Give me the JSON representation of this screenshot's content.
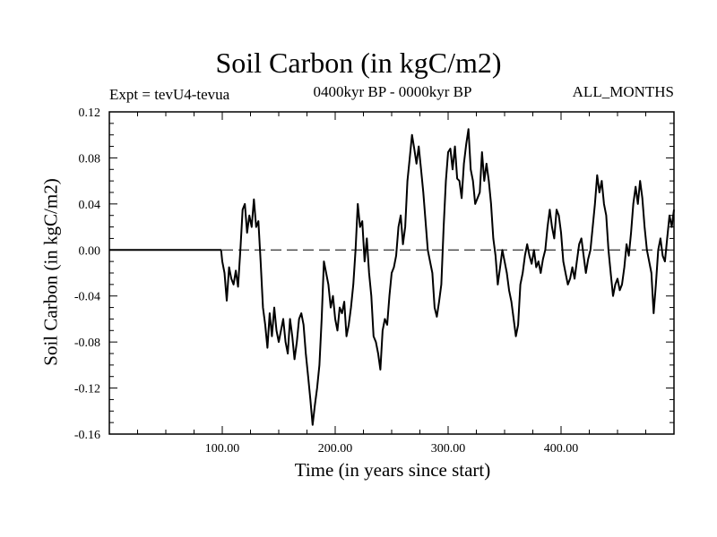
{
  "header": {
    "title": "Soil Carbon (in kgC/m2)",
    "experiment": "Expt = tevU4-tevua",
    "period": "0400kyr BP - 0000kyr BP",
    "months": "ALL_MONTHS"
  },
  "chart_data": {
    "type": "line",
    "title": "Soil Carbon (in kgC/m2)",
    "xlabel": "Time (in years since start)",
    "ylabel": "Soil Carbon (in kgC/m2)",
    "xlim": [
      0,
      500
    ],
    "ylim": [
      -0.16,
      0.12
    ],
    "x_ticks": [
      100,
      200,
      300,
      400
    ],
    "x_tick_labels": [
      "100.00",
      "200.00",
      "300.00",
      "400.00"
    ],
    "y_ticks": [
      0.12,
      0.08,
      0.04,
      0.0,
      -0.04,
      -0.08,
      -0.12,
      -0.16
    ],
    "y_tick_labels": [
      "0.12",
      "0.08",
      "0.04",
      "0.00",
      "-0.04",
      "-0.08",
      "-0.12",
      "-0.16"
    ],
    "reference_line": {
      "y": 0.0,
      "style": "dashed"
    },
    "grid": false,
    "series": [
      {
        "x": [
          0,
          99,
          100,
          102,
          104,
          106,
          108,
          110,
          112,
          114,
          116,
          118,
          120,
          122,
          124,
          126,
          128,
          130,
          132,
          134,
          136,
          138,
          140,
          142,
          144,
          146,
          148,
          150,
          152,
          154,
          156,
          158,
          160,
          162,
          164,
          166,
          168,
          170,
          172,
          174,
          176,
          178,
          180,
          182,
          184,
          186,
          188,
          190,
          192,
          194,
          196,
          198,
          200,
          202,
          204,
          206,
          208,
          210,
          212,
          214,
          216,
          218,
          220,
          222,
          224,
          226,
          228,
          230,
          232,
          234,
          236,
          238,
          240,
          242,
          244,
          246,
          248,
          250,
          252,
          254,
          256,
          258,
          260,
          262,
          264,
          266,
          268,
          270,
          272,
          274,
          276,
          278,
          280,
          282,
          284,
          286,
          288,
          290,
          292,
          294,
          296,
          298,
          300,
          302,
          304,
          306,
          308,
          310,
          312,
          314,
          316,
          318,
          320,
          322,
          324,
          326,
          328,
          330,
          332,
          334,
          336,
          338,
          340,
          342,
          344,
          346,
          348,
          350,
          352,
          354,
          356,
          358,
          360,
          362,
          364,
          366,
          368,
          370,
          372,
          374,
          376,
          378,
          380,
          382,
          384,
          386,
          388,
          390,
          392,
          394,
          396,
          398,
          400,
          402,
          404,
          406,
          408,
          410,
          412,
          414,
          416,
          418,
          420,
          422,
          424,
          426,
          428,
          430,
          432,
          434,
          436,
          438,
          440,
          442,
          444,
          446,
          448,
          450,
          452,
          454,
          456,
          458,
          460,
          462,
          464,
          466,
          468,
          470,
          472,
          474,
          476,
          478,
          480,
          482,
          484,
          486,
          488,
          490,
          492,
          494,
          496,
          498,
          500
        ],
        "y": [
          0.0,
          0.0,
          -0.01,
          -0.02,
          -0.044,
          -0.015,
          -0.025,
          -0.03,
          -0.018,
          -0.032,
          0.0,
          0.035,
          0.04,
          0.015,
          0.03,
          0.02,
          0.044,
          0.02,
          0.025,
          -0.01,
          -0.05,
          -0.065,
          -0.085,
          -0.055,
          -0.075,
          -0.05,
          -0.07,
          -0.08,
          -0.07,
          -0.06,
          -0.08,
          -0.09,
          -0.06,
          -0.075,
          -0.095,
          -0.08,
          -0.06,
          -0.055,
          -0.065,
          -0.09,
          -0.11,
          -0.13,
          -0.152,
          -0.135,
          -0.12,
          -0.1,
          -0.06,
          -0.01,
          -0.02,
          -0.03,
          -0.05,
          -0.04,
          -0.06,
          -0.07,
          -0.05,
          -0.055,
          -0.045,
          -0.075,
          -0.065,
          -0.05,
          -0.03,
          0.0,
          0.04,
          0.02,
          0.025,
          -0.01,
          0.01,
          -0.02,
          -0.04,
          -0.075,
          -0.08,
          -0.09,
          -0.104,
          -0.07,
          -0.06,
          -0.065,
          -0.04,
          -0.02,
          -0.015,
          -0.005,
          0.02,
          0.03,
          0.005,
          0.02,
          0.06,
          0.08,
          0.1,
          0.088,
          0.075,
          0.09,
          0.07,
          0.05,
          0.025,
          0.0,
          -0.01,
          -0.02,
          -0.05,
          -0.058,
          -0.045,
          -0.03,
          0.02,
          0.06,
          0.085,
          0.088,
          0.07,
          0.09,
          0.062,
          0.06,
          0.045,
          0.075,
          0.092,
          0.105,
          0.07,
          0.06,
          0.04,
          0.045,
          0.05,
          0.085,
          0.06,
          0.075,
          0.06,
          0.04,
          0.01,
          -0.005,
          -0.03,
          -0.015,
          0.0,
          -0.01,
          -0.02,
          -0.035,
          -0.045,
          -0.06,
          -0.075,
          -0.065,
          -0.03,
          -0.02,
          -0.005,
          0.005,
          -0.005,
          -0.012,
          0.0,
          -0.015,
          -0.01,
          -0.02,
          -0.008,
          0.0,
          0.02,
          0.035,
          0.02,
          0.01,
          0.035,
          0.03,
          0.015,
          -0.01,
          -0.02,
          -0.03,
          -0.025,
          -0.015,
          -0.025,
          -0.01,
          0.005,
          0.01,
          -0.005,
          -0.02,
          -0.008,
          0.0,
          0.02,
          0.04,
          0.065,
          0.05,
          0.06,
          0.04,
          0.03,
          0.0,
          -0.02,
          -0.04,
          -0.03,
          -0.025,
          -0.035,
          -0.03,
          -0.015,
          0.005,
          -0.005,
          0.015,
          0.04,
          0.055,
          0.04,
          0.06,
          0.045,
          0.02,
          0.0,
          -0.01,
          -0.02,
          -0.055,
          -0.03,
          0.0,
          0.01,
          -0.005,
          -0.01,
          0.01,
          0.03,
          0.02,
          0.035
        ]
      }
    ]
  }
}
